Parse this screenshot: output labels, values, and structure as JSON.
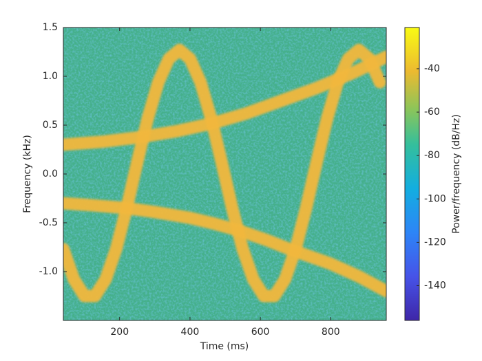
{
  "chart_data": {
    "type": "spectrogram",
    "xlabel": "Time (ms)",
    "ylabel": "Frequency (kHz)",
    "xlim": [
      40,
      958
    ],
    "xticks": [
      200,
      400,
      600,
      800
    ],
    "ylim": [
      -1.5,
      1.5
    ],
    "yticks": [
      {
        "value": -1,
        "label": "-1.0"
      },
      -0.5,
      {
        "value": 0,
        "label": "0.0"
      },
      0.5,
      {
        "value": 1,
        "label": "1.0"
      },
      1.5
    ],
    "background_color": "#45b08c",
    "clim": [
      -156,
      -21
    ],
    "cticks": [
      -140,
      -120,
      -100,
      -80,
      -60,
      -40
    ],
    "colorbar_label": "Power/frequency (dB/Hz)",
    "series": [
      {
        "color": "#f2b83e",
        "x": [
          40,
          70,
          100,
          130,
          160,
          190,
          220,
          250,
          280,
          310,
          340,
          370,
          400,
          430,
          460,
          490,
          520,
          550,
          580,
          610,
          640,
          670,
          700,
          730,
          760,
          790,
          820,
          850,
          880,
          910,
          940
        ],
        "values": [
          -0.77,
          -1.08,
          -1.25,
          -1.25,
          -1.08,
          -0.77,
          -0.35,
          0.12,
          0.57,
          0.94,
          1.18,
          1.27,
          1.18,
          0.94,
          0.57,
          0.12,
          -0.35,
          -0.77,
          -1.08,
          -1.25,
          -1.25,
          -1.08,
          -0.77,
          -0.35,
          0.12,
          0.57,
          0.94,
          1.18,
          1.27,
          1.18,
          0.94
        ]
      },
      {
        "color": "#f2b83e",
        "x": [
          40,
          150,
          265,
          365,
          465,
          560,
          660,
          760,
          860,
          958
        ],
        "values": [
          0.3,
          0.33,
          0.38,
          0.44,
          0.52,
          0.62,
          0.75,
          0.88,
          1.03,
          1.2
        ]
      },
      {
        "color": "#f2b83e",
        "x": [
          40,
          120,
          220,
          300,
          400,
          470,
          540,
          620,
          690,
          800,
          880,
          958
        ],
        "values": [
          -0.3,
          -0.32,
          -0.35,
          -0.39,
          -0.45,
          -0.51,
          -0.58,
          -0.68,
          -0.78,
          -0.92,
          -1.05,
          -1.2
        ]
      }
    ]
  }
}
